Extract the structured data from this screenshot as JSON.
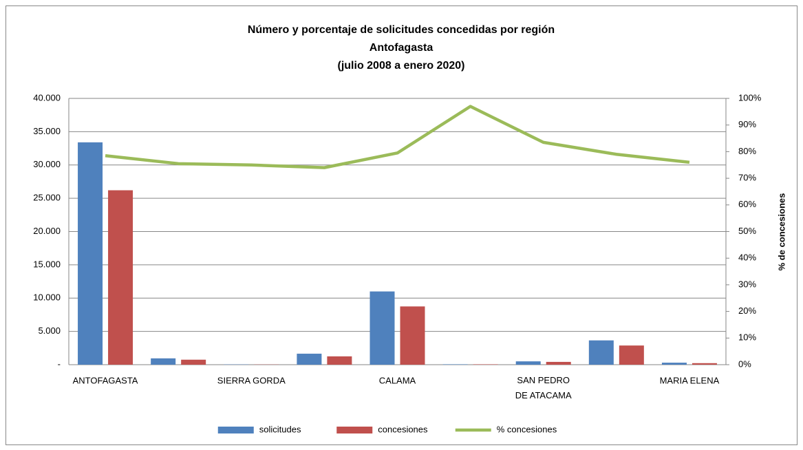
{
  "chart_data": {
    "type": "bar_line",
    "title": [
      "Número y porcentaje de solicitudes concedidas por región",
      "Antofagasta",
      "(julio 2008 a enero 2020)"
    ],
    "y2_label": "% de concesiones",
    "categories": [
      "ANTOFAGASTA",
      null,
      "SIERRA GORDA",
      null,
      "CALAMA",
      null,
      "SAN PEDRO DE ATACAMA",
      null,
      "MARIA ELENA"
    ],
    "series": [
      {
        "name": "solicitudes",
        "color": "#4f81bd",
        "type": "bar",
        "values": [
          33400,
          950,
          40,
          1650,
          11000,
          60,
          500,
          3650,
          300
        ]
      },
      {
        "name": "concesiones",
        "color": "#c0504d",
        "type": "bar",
        "values": [
          26200,
          750,
          30,
          1250,
          8750,
          58,
          420,
          2880,
          230
        ]
      },
      {
        "name": "% concesiones",
        "color": "#9bbb59",
        "type": "line",
        "axis": "y2",
        "values": [
          78.5,
          75.5,
          75,
          74,
          79.5,
          97,
          83.5,
          79,
          76
        ]
      }
    ],
    "ylim": [
      0,
      40000
    ],
    "yticks": [
      {
        "value": 0,
        "label": "-"
      },
      {
        "value": 5000,
        "label": "5.000"
      },
      {
        "value": 10000,
        "label": "10.000"
      },
      {
        "value": 15000,
        "label": "15.000"
      },
      {
        "value": 20000,
        "label": "20.000"
      },
      {
        "value": 25000,
        "label": "25.000"
      },
      {
        "value": 30000,
        "label": "30.000"
      },
      {
        "value": 35000,
        "label": "35.000"
      },
      {
        "value": 40000,
        "label": "40.000"
      }
    ],
    "y2lim": [
      0,
      100
    ],
    "y2ticks": [
      {
        "value": 0,
        "label": "0%"
      },
      {
        "value": 10,
        "label": "10%"
      },
      {
        "value": 20,
        "label": "20%"
      },
      {
        "value": 30,
        "label": "30%"
      },
      {
        "value": 40,
        "label": "40%"
      },
      {
        "value": 50,
        "label": "50%"
      },
      {
        "value": 60,
        "label": "60%"
      },
      {
        "value": 70,
        "label": "70%"
      },
      {
        "value": 80,
        "label": "80%"
      },
      {
        "value": 90,
        "label": "90%"
      },
      {
        "value": 100,
        "label": "100%"
      }
    ],
    "grid": true,
    "legend": "bottom"
  }
}
